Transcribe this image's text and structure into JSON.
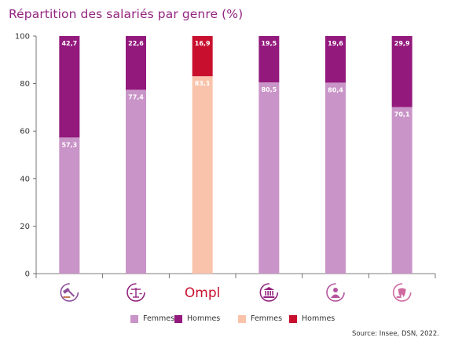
{
  "title": "Répartition des salariés par genre (%)",
  "source": "Source: Insee, DSN, 2022.",
  "colors": {
    "title": "#93247f",
    "femmes": "#c994c7",
    "hommes": "#93197d",
    "femmes_ompl": "#f9c3ab",
    "hommes_ompl": "#c8102e"
  },
  "legend": [
    {
      "label": "Femmes",
      "color": "#c994c7"
    },
    {
      "label": "Hommes",
      "color": "#93197d"
    },
    {
      "label": "Femmes",
      "color": "#f9c3ab"
    },
    {
      "label": "Hommes",
      "color": "#c8102e"
    }
  ],
  "category_icons": [
    "gavel-icon",
    "scales-icon",
    "ompl-logo",
    "institution-icon",
    "person-icon",
    "tooth-icon"
  ],
  "ompl_logo_text": "Ompl",
  "chart_data": {
    "type": "bar",
    "stacked": true,
    "title": "Répartition des salariés par genre (%)",
    "ylim": [
      0,
      100
    ],
    "yticks": [
      0,
      20,
      40,
      60,
      80,
      100
    ],
    "categories": [
      "",
      "",
      "Ompl",
      "",
      "",
      ""
    ],
    "series": [
      {
        "name": "Femmes",
        "values": [
          57.3,
          77.4,
          83.1,
          80.5,
          80.4,
          70.1
        ]
      },
      {
        "name": "Hommes",
        "values": [
          42.7,
          22.6,
          16.9,
          19.5,
          19.6,
          29.9
        ]
      }
    ],
    "value_labels": {
      "Femmes": [
        "57,3",
        "77,4",
        "83,1",
        "80,5",
        "80,4",
        "70,1"
      ],
      "Hommes": [
        "42,7",
        "22,6",
        "16,9",
        "19,5",
        "19,6",
        "29,9"
      ]
    },
    "highlight_index": 2,
    "grid": false,
    "legend_position": "bottom"
  }
}
